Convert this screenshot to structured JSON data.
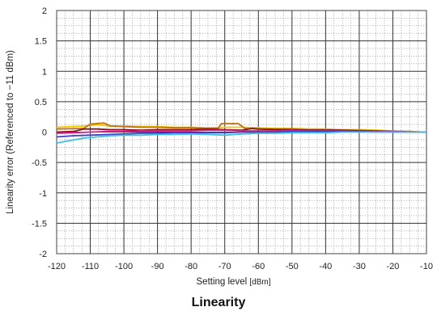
{
  "chart_data": {
    "type": "line",
    "title": "Linearity",
    "xlabel": "Setting level",
    "xlabel_unit": "[dBm]",
    "ylabel": "Linearity error (Referenced to −11 dBm)",
    "xlim": [
      -120,
      -10
    ],
    "ylim": [
      -2,
      2
    ],
    "x_ticks": [
      -120,
      -110,
      -100,
      -90,
      -80,
      -70,
      -60,
      -50,
      -40,
      -30,
      -20,
      -10
    ],
    "y_ticks": [
      -2,
      -1.5,
      -1,
      -0.5,
      0,
      0.5,
      1,
      1.5,
      2
    ],
    "x_tick_labels": [
      "-120",
      "-110",
      "-100",
      "-90",
      "-80",
      "-70",
      "-60",
      "-50",
      "-40",
      "-30",
      "-20",
      "-10"
    ],
    "y_tick_labels": [
      "-2",
      "-1.5",
      "-1",
      "-0.5",
      "0",
      "0.5",
      "1",
      "1.5",
      "2"
    ],
    "grid": true,
    "minor_grid": true,
    "series": [
      {
        "color": "#f2c400",
        "x": [
          -120,
          -112,
          -108,
          -104,
          -100,
          -95,
          -90,
          -85,
          -80,
          -75,
          -70,
          -65,
          -60,
          -55,
          -50,
          -45,
          -40,
          -35,
          -30,
          -25,
          -20,
          -15,
          -11,
          -10
        ],
        "y": [
          0.08,
          0.1,
          0.12,
          0.1,
          0.1,
          0.09,
          0.09,
          0.08,
          0.08,
          0.07,
          0.08,
          0.08,
          0.07,
          0.06,
          0.06,
          0.05,
          0.05,
          0.04,
          0.04,
          0.03,
          0.02,
          0.01,
          0.0,
          0.0
        ]
      },
      {
        "color": "#c07010",
        "x": [
          -120,
          -112,
          -110,
          -106,
          -104,
          -100,
          -95,
          -90,
          -85,
          -80,
          -75,
          -72,
          -71,
          -66,
          -64,
          -60,
          -55,
          -50,
          -45,
          -40,
          -35,
          -30,
          -25,
          -20,
          -15,
          -11,
          -10
        ],
        "y": [
          0.05,
          0.06,
          0.13,
          0.15,
          0.1,
          0.09,
          0.08,
          0.08,
          0.07,
          0.07,
          0.06,
          0.06,
          0.14,
          0.14,
          0.06,
          0.05,
          0.05,
          0.05,
          0.04,
          0.04,
          0.03,
          0.03,
          0.02,
          0.01,
          0.01,
          0.0,
          0.0
        ]
      },
      {
        "color": "#8a1020",
        "x": [
          -120,
          -115,
          -112,
          -108,
          -104,
          -100,
          -95,
          -90,
          -85,
          -80,
          -75,
          -70,
          -65,
          -62,
          -60,
          -55,
          -50,
          -45,
          -40,
          -35,
          -30,
          -25,
          -20,
          -15,
          -11,
          -10
        ],
        "y": [
          0.0,
          0.01,
          0.05,
          0.05,
          0.04,
          0.04,
          0.03,
          0.04,
          0.04,
          0.04,
          0.05,
          0.04,
          0.03,
          0.06,
          0.05,
          0.04,
          0.04,
          0.03,
          0.03,
          0.03,
          0.02,
          0.02,
          0.01,
          0.0,
          0.0,
          0.0
        ]
      },
      {
        "color": "#d02090",
        "x": [
          -120,
          -115,
          -110,
          -105,
          -100,
          -95,
          -90,
          -85,
          -80,
          -75,
          -70,
          -65,
          -60,
          -55,
          -50,
          -45,
          -40,
          -35,
          -30,
          -25,
          -20,
          -15,
          -11,
          -10
        ],
        "y": [
          -0.02,
          -0.01,
          0.0,
          0.01,
          0.01,
          0.02,
          0.02,
          0.02,
          0.02,
          0.03,
          0.03,
          0.02,
          0.02,
          0.02,
          0.03,
          0.02,
          0.02,
          0.02,
          0.01,
          0.01,
          0.01,
          0.0,
          0.0,
          0.0
        ]
      },
      {
        "color": "#4040c8",
        "x": [
          -120,
          -115,
          -110,
          -105,
          -100,
          -95,
          -90,
          -85,
          -80,
          -75,
          -70,
          -65,
          -60,
          -55,
          -50,
          -45,
          -40,
          -35,
          -30,
          -25,
          -20,
          -15,
          -11,
          -10
        ],
        "y": [
          -0.08,
          -0.06,
          -0.05,
          -0.04,
          -0.03,
          -0.02,
          -0.02,
          -0.01,
          -0.01,
          -0.01,
          -0.01,
          0.0,
          0.0,
          0.0,
          0.01,
          0.01,
          0.01,
          0.01,
          0.01,
          0.0,
          0.0,
          0.0,
          0.0,
          0.0
        ]
      },
      {
        "color": "#40c0e0",
        "x": [
          -120,
          -116,
          -112,
          -108,
          -104,
          -100,
          -95,
          -90,
          -85,
          -80,
          -75,
          -70,
          -65,
          -60,
          -55,
          -50,
          -45,
          -40,
          -35,
          -30,
          -25,
          -20,
          -15,
          -11,
          -10
        ],
        "y": [
          -0.18,
          -0.14,
          -0.1,
          -0.08,
          -0.06,
          -0.05,
          -0.05,
          -0.04,
          -0.04,
          -0.03,
          -0.04,
          -0.05,
          -0.03,
          -0.02,
          -0.02,
          -0.01,
          -0.01,
          -0.01,
          0.0,
          0.0,
          0.0,
          0.0,
          0.0,
          0.0,
          0.0
        ]
      }
    ]
  }
}
